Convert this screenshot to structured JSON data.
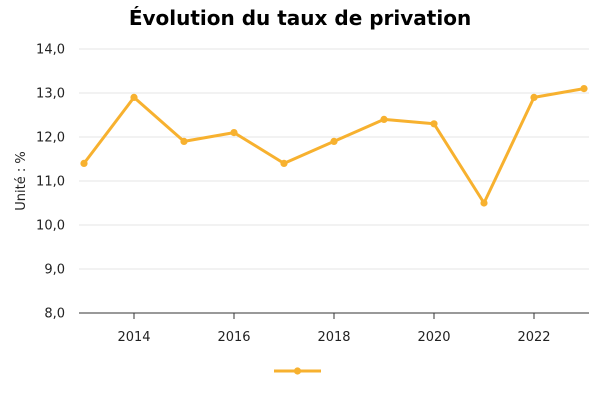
{
  "chart_data": {
    "type": "line",
    "title": "Évolution du taux de privation",
    "xlabel": "",
    "ylabel": "Unité : %",
    "x": [
      2013,
      2014,
      2015,
      2016,
      2017,
      2018,
      2019,
      2020,
      2021,
      2022,
      2023
    ],
    "xticks": [
      2014,
      2016,
      2018,
      2020,
      2022
    ],
    "xlim": [
      2012.9,
      2023.1
    ],
    "ylim": [
      8.0,
      14.0
    ],
    "yticks": [
      "8,0",
      "9,0",
      "10,0",
      "11,0",
      "12,0",
      "13,0",
      "14,0"
    ],
    "grid": true,
    "legend": "bottom",
    "series": [
      {
        "values": [
          11.4,
          12.9,
          11.9,
          12.1,
          11.4,
          11.9,
          12.4,
          12.3,
          10.5,
          12.9,
          13.1
        ],
        "color": "#f7b12f"
      }
    ]
  }
}
